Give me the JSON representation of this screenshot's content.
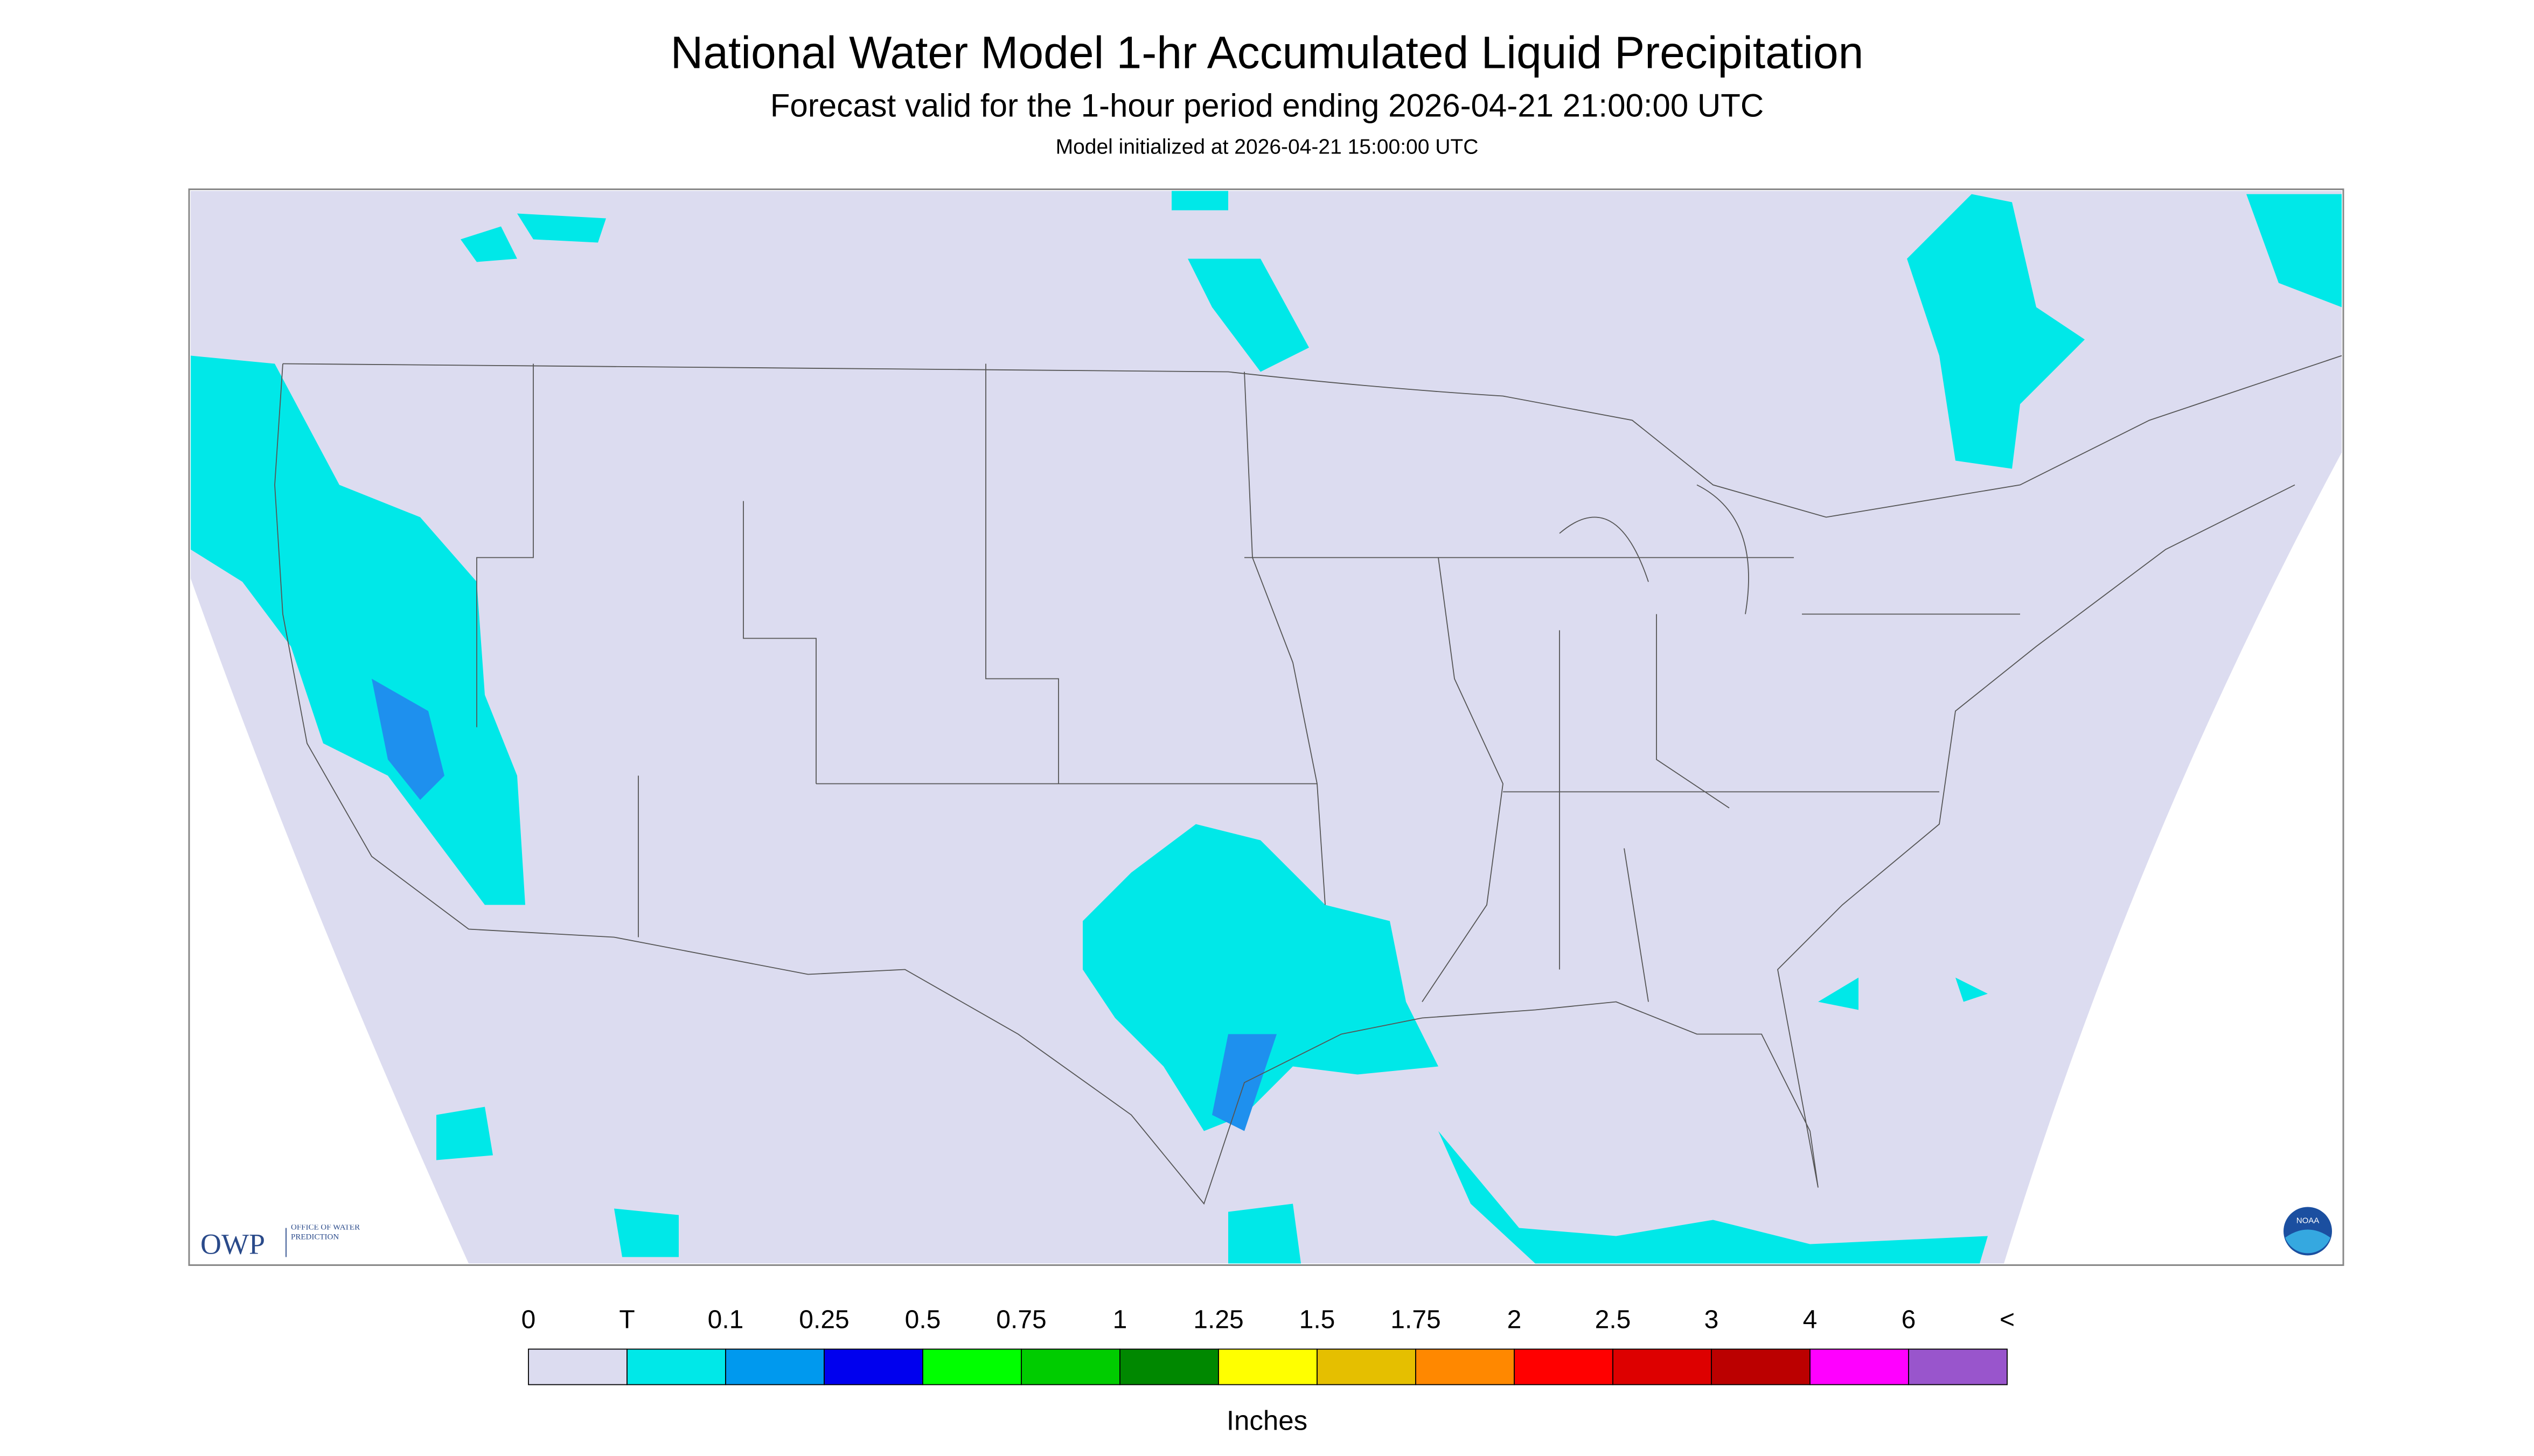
{
  "header": {
    "title": "National Water Model 1-hr Accumulated Liquid Precipitation",
    "subtitle": "Forecast valid for the 1-hour period ending 2026-04-21 21:00:00 UTC",
    "init": "Model initialized at 2026-04-21 15:00:00 UTC"
  },
  "logos": {
    "owp": "OWP",
    "owp_full": "OFFICE OF WATER PREDICTION",
    "noaa": "NOAA"
  },
  "legend": {
    "labels": [
      "0",
      "T",
      "0.1",
      "0.25",
      "0.5",
      "0.75",
      "1",
      "1.25",
      "1.5",
      "1.75",
      "2",
      "2.5",
      "3",
      "4",
      "6",
      "<"
    ],
    "colors": [
      "#dcdcf0",
      "#00e8e8",
      "#0099ee",
      "#0000ee",
      "#00ff00",
      "#00cc00",
      "#008800",
      "#ffff00",
      "#e5bf00",
      "#ff8800",
      "#ff0000",
      "#dd0000",
      "#bb0000",
      "#ff00ff",
      "#9955cc"
    ],
    "unit": "Inches"
  }
}
